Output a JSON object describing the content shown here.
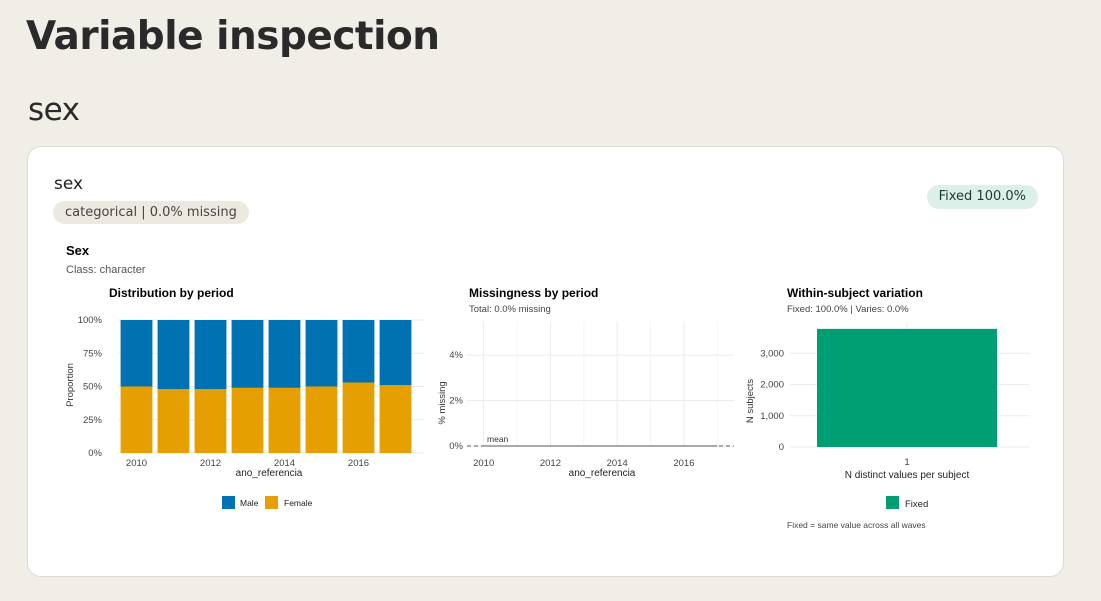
{
  "page": {
    "title": "Variable inspection",
    "section": "sex"
  },
  "card": {
    "variable_name": "sex",
    "summary_pill": "categorical | 0.0% missing",
    "status_badge": "Fixed 100.0%",
    "figure_title": "Sex",
    "figure_subtitle": "Class: character"
  },
  "colors": {
    "male": "#0072b2",
    "female": "#e69f00",
    "fixed": "#009e73",
    "badge_bg": "#dcefe8",
    "pill_bg": "#ede9e1",
    "page_bg": "#f1eee7"
  },
  "chart_data": [
    {
      "type": "bar",
      "stacked": true,
      "title": "Distribution by period",
      "xlabel": "ano_referencia",
      "ylabel": "Proportion",
      "categories": [
        2010,
        2011,
        2012,
        2013,
        2014,
        2015,
        2016,
        2017
      ],
      "x_ticks": [
        2010,
        2012,
        2014,
        2016
      ],
      "y_ticks": [
        "0%",
        "25%",
        "50%",
        "75%",
        "100%"
      ],
      "ylim": [
        0,
        1
      ],
      "series": [
        {
          "name": "Female",
          "values": [
            0.5,
            0.48,
            0.48,
            0.49,
            0.49,
            0.5,
            0.53,
            0.51
          ]
        },
        {
          "name": "Male",
          "values": [
            0.5,
            0.52,
            0.52,
            0.51,
            0.51,
            0.5,
            0.47,
            0.49
          ]
        }
      ],
      "legend": [
        "Male",
        "Female"
      ],
      "legend_position": "bottom",
      "grid": true
    },
    {
      "type": "line",
      "title": "Missingness by period",
      "subtitle": "Total: 0.0% missing",
      "xlabel": "ano_referencia",
      "ylabel": "% missing",
      "x_ticks": [
        2010,
        2012,
        2014,
        2016
      ],
      "y_ticks": [
        "0%",
        "2%",
        "4%"
      ],
      "xlim": [
        2009.5,
        2017.5
      ],
      "ylim": [
        0,
        5.5
      ],
      "x": [
        2010,
        2011,
        2012,
        2013,
        2014,
        2015,
        2016,
        2017
      ],
      "values": [
        0,
        0,
        0,
        0,
        0,
        0,
        0,
        0
      ],
      "reference_line": {
        "value": 0,
        "label": "mean"
      },
      "grid": true
    },
    {
      "type": "bar",
      "title": "Within-subject variation",
      "subtitle": "Fixed: 100.0%   |   Varies: 0.0%",
      "xlabel": "N distinct values per subject",
      "ylabel": "N subjects",
      "categories": [
        "1"
      ],
      "values": [
        3780
      ],
      "y_ticks": [
        "0",
        "1,000",
        "2,000",
        "3,000"
      ],
      "ylim": [
        0,
        4000
      ],
      "legend": [
        "Fixed"
      ],
      "legend_position": "bottom",
      "caption": "Fixed = same value across all waves",
      "grid": true
    }
  ]
}
